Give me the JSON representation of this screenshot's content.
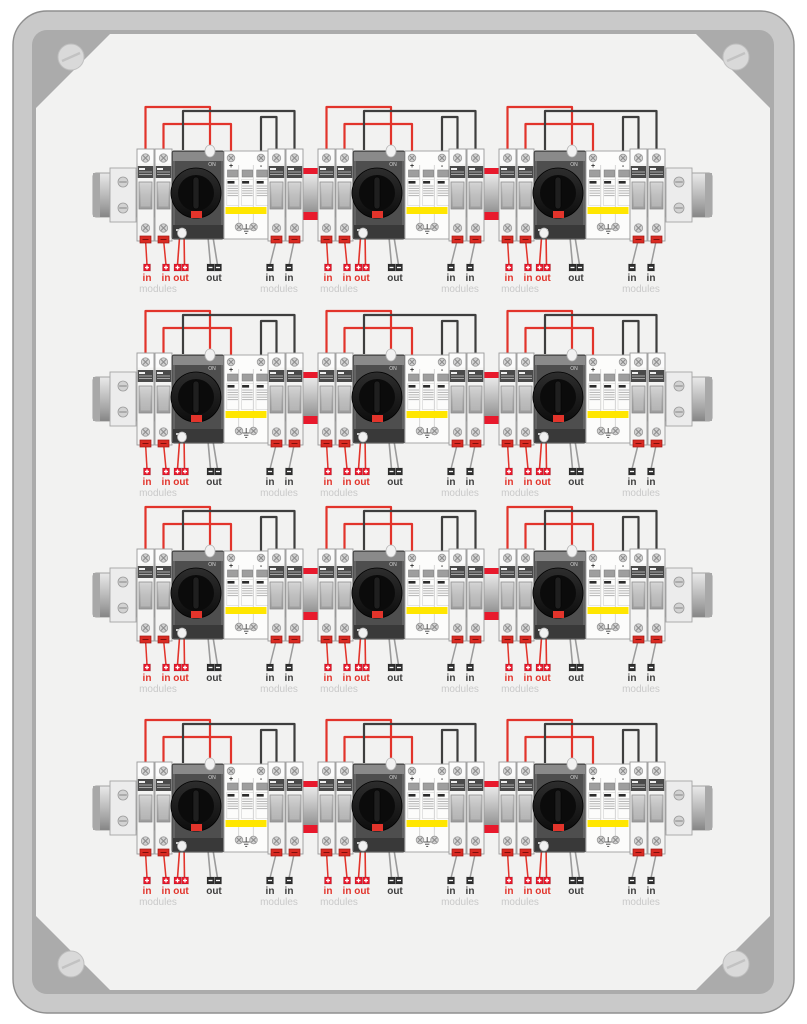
{
  "diagram": {
    "kind": "pv-combiner-box-wiring-panel",
    "rows": 4,
    "groups_per_row": 3,
    "devices_per_group": [
      "fuse-holder-pair-positive",
      "dc-disconnect-switch",
      "surge-protection-device",
      "fuse-holder-pair-negative"
    ]
  },
  "labels": {
    "pos_in": "in",
    "neg_in": "in",
    "pos_out": "out",
    "neg_out": "out",
    "modules": "modules",
    "switch_on": "ON",
    "spd_plus": "+",
    "spd_minus": "-"
  },
  "colors": {
    "frame": "#c9c9c9",
    "frame_edge": "#8f8f8f",
    "corner_pad": "#ababab",
    "panel_face": "#f2f2f1",
    "rail_cap": "#a8a8a8",
    "wire_positive": "#e2342b",
    "wire_negative": "#3e3e3e",
    "wire_neutral": "#9b9b9b",
    "terminal_positive": "#e8192c",
    "terminal_negative": "#2e2e2e",
    "bridge_red": "#e8192c",
    "spd_stripe": "#ffe600",
    "switch_body": "#636363",
    "switch_panel": "#4e4e4e",
    "knob": "#161616",
    "fuse_band": "#4a4a4a",
    "clamp_red": "#d92b23",
    "muted_label": "#c9c9c9",
    "dark_label": "#3f3f3f"
  }
}
